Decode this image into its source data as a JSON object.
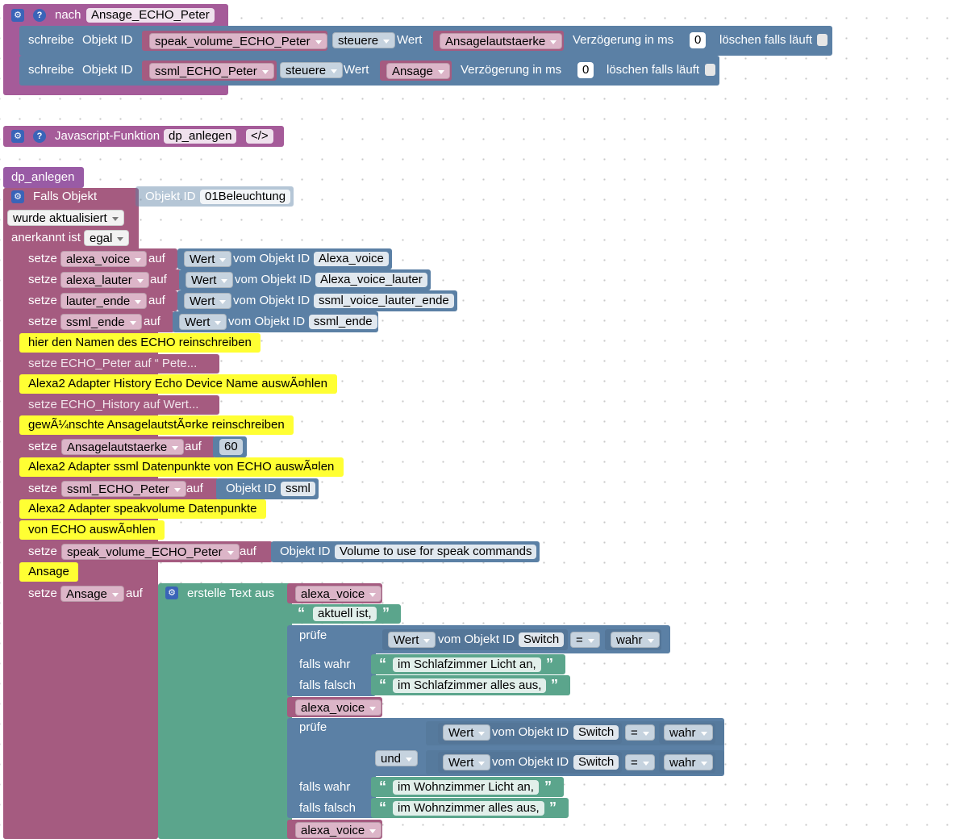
{
  "func": {
    "title_prefix": "nach",
    "name": "Ansage_ECHO_Peter",
    "row1": {
      "write": "schreibe",
      "objid": "Objekt ID",
      "id": "speak_volume_ECHO_Peter",
      "mode": "steuere",
      "wert": "Wert",
      "value": "Ansagelautstaerke",
      "delay": "Verzögerung in ms",
      "delay_val": "0",
      "clear": "löschen falls läuft"
    },
    "row2": {
      "write": "schreibe",
      "objid": "Objekt ID",
      "id": "ssml_ECHO_Peter",
      "mode": "steuere",
      "wert": "Wert",
      "value": "Ansage",
      "delay": "Verzögerung in ms",
      "delay_val": "0",
      "clear": "löschen falls läuft"
    }
  },
  "jsfunc": {
    "label": "Javascript-Funktion",
    "name": "dp_anlegen",
    "code": "</>"
  },
  "proc_name": "dp_anlegen",
  "trigger": {
    "label": "Falls Objekt",
    "objid": "Objekt ID",
    "objval": "01Beleuchtung",
    "updated": "wurde aktualisiert",
    "ack_label": "anerkannt ist",
    "ack_val": "egal"
  },
  "sets": [
    {
      "setze": "setze",
      "var": "alexa_voice",
      "auf": "auf",
      "wert": "Wert",
      "vom": "vom Objekt ID",
      "id": "Alexa_voice"
    },
    {
      "setze": "setze",
      "var": "alexa_lauter",
      "auf": "auf",
      "wert": "Wert",
      "vom": "vom Objekt ID",
      "id": "Alexa_voice_lauter"
    },
    {
      "setze": "setze",
      "var": "lauter_ende",
      "auf": "auf",
      "wert": "Wert",
      "vom": "vom Objekt ID",
      "id": "ssml_voice_lauter_ende"
    },
    {
      "setze": "setze",
      "var": "ssml_ende",
      "auf": "auf",
      "wert": "Wert",
      "vom": "vom Objekt ID",
      "id": "ssml_ende"
    }
  ],
  "comments": {
    "c1": "hier den Namen des ECHO reinschreiben",
    "c2": "Alexa2 Adapter History Echo Device Name auswÃ¤hlen",
    "c3": "gewÃ¼nschte AnsagelautstÃ¤rke reinschreiben",
    "c4": "Alexa2 Adapter ssml Datenpunkte von ECHO auswÃ¤len",
    "c5a": "Alexa2 Adapter speakvolume Datenpunkte",
    "c5b": "von ECHO auswÃ¤hlen",
    "c6": "Ansage"
  },
  "collapsed": {
    "c1": "setze ECHO_Peter auf “ Pete...",
    "c2": "setze ECHO_History auf Wert..."
  },
  "vol": {
    "setze": "setze",
    "var": "Ansagelautstaerke",
    "auf": "auf",
    "val": "60"
  },
  "ssml": {
    "setze": "setze",
    "var": "ssml_ECHO_Peter",
    "auf": "auf",
    "objid": "Objekt ID",
    "id": "ssml"
  },
  "spk": {
    "setze": "setze",
    "var": "speak_volume_ECHO_Peter",
    "auf": "auf",
    "objid": "Objekt ID",
    "id": "Volume to use for speak commands"
  },
  "ans": {
    "setze": "setze",
    "var": "Ansage",
    "auf": "auf",
    "create": "erstelle Text aus"
  },
  "text": {
    "v1": "alexa_voice",
    "t1": "aktuell ist,",
    "pruefe": "prüfe",
    "wert": "Wert",
    "vom": "vom Objekt ID",
    "sw": "Switch",
    "eq": "=",
    "wahr": "wahr",
    "falls_wahr": "falls wahr",
    "falls_falsch": "falls falsch",
    "t_schlaf_an": "im Schlafzimmer Licht an,",
    "t_schlaf_aus": "im Schlafzimmer alles aus,",
    "und": "und",
    "t_wohn_an": "im Wohnzimmer Licht an,",
    "t_wohn_aus": "im Wohnzimmer alles aus,"
  }
}
